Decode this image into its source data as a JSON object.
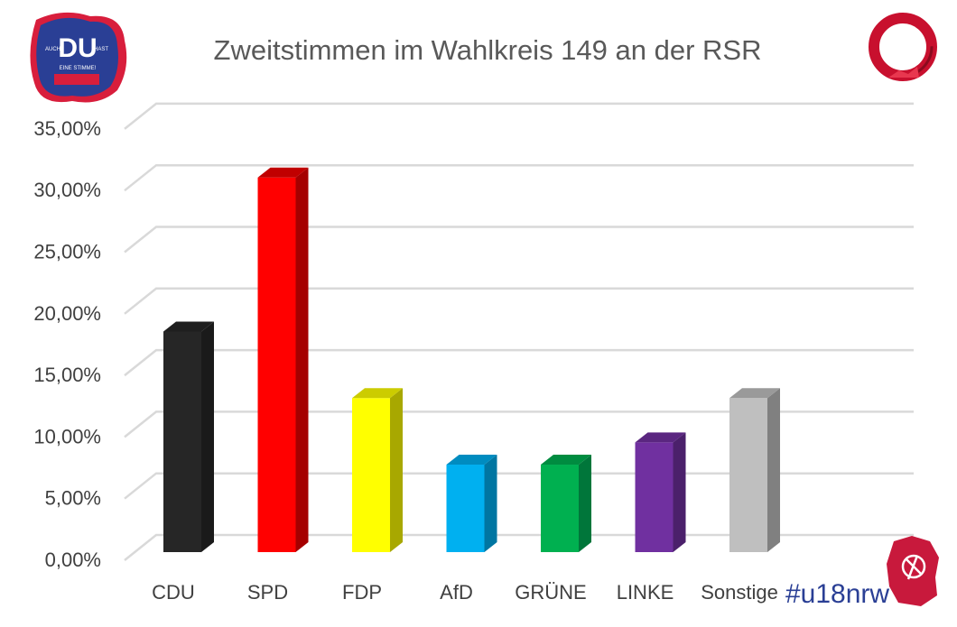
{
  "chart_data": {
    "type": "bar",
    "title": "Zweitstimmen im Wahlkreis 149 an der RSR",
    "xlabel": "",
    "ylabel": "",
    "categories": [
      "CDU",
      "SPD",
      "FDP",
      "AfD",
      "GRÜNE",
      "LINKE",
      "Sonstige"
    ],
    "values": [
      17.9,
      30.4,
      12.5,
      7.1,
      7.1,
      8.9,
      12.5
    ],
    "value_unit": "%",
    "ylim": [
      0,
      35
    ],
    "yticks": [
      "0,00%",
      "5,00%",
      "10,00%",
      "15,00%",
      "20,00%",
      "25,00%",
      "30,00%",
      "35,00%"
    ],
    "grid": true,
    "style": "3d-column",
    "colors": [
      "#262626",
      "#ff0000",
      "#ffff00",
      "#00b0f0",
      "#00b050",
      "#7030a0",
      "#bfbfbf"
    ],
    "side_colors": [
      "#1a1a1a",
      "#a50000",
      "#a8a800",
      "#0076a2",
      "#00763a",
      "#4b206b",
      "#808080"
    ],
    "top_colors": [
      "#1f1f1f",
      "#c00000",
      "#cccc00",
      "#008cc0",
      "#008c40",
      "#5a2680",
      "#9a9a9a"
    ]
  },
  "logos": {
    "left": {
      "big": "DU",
      "left_word": "AUCH",
      "right_word": "HAST",
      "bottom": "EINE STIMME!"
    },
    "bottom_right": "#u18nrw"
  }
}
